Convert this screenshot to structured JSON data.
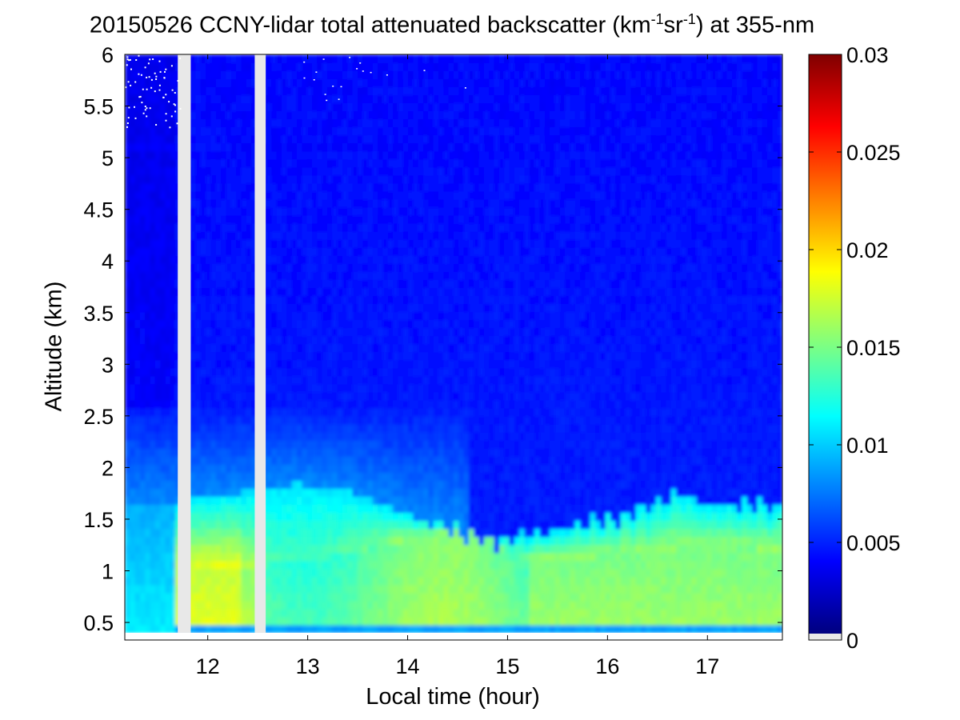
{
  "chart_data": {
    "type": "heatmap",
    "title": {
      "prefix": "20150526 CCNY-lidar total attenuated backscatter (km",
      "exp1": "-1",
      "mid": "sr",
      "exp2": "-1",
      "suffix": ") at 355-nm"
    },
    "xlabel": "Local time (hour)",
    "ylabel": "Altitude (km)",
    "xlim": [
      11.17,
      17.75
    ],
    "ylim": [
      0.33,
      6.0
    ],
    "x_ticks": [
      12,
      13,
      14,
      15,
      16,
      17
    ],
    "x_tick_labels": [
      "12",
      "13",
      "14",
      "15",
      "16",
      "17"
    ],
    "y_ticks": [
      0.5,
      1,
      1.5,
      2,
      2.5,
      3,
      3.5,
      4,
      4.5,
      5,
      5.5,
      6
    ],
    "y_tick_labels": [
      "0.5",
      "1",
      "1.5",
      "2",
      "2.5",
      "3",
      "3.5",
      "4",
      "4.5",
      "5",
      "5.5",
      "6"
    ],
    "colormap": "jet",
    "colorbar": {
      "range": [
        0,
        0.03
      ],
      "ticks": [
        0,
        0.005,
        0.01,
        0.015,
        0.02,
        0.025,
        0.03
      ],
      "tick_labels": [
        "0",
        "0.005",
        "0.01",
        "0.015",
        "0.02",
        "0.025",
        "0.03"
      ],
      "no_data_color": "#e8e8e8"
    },
    "no_data_gaps": [
      [
        11.7,
        11.83
      ],
      [
        12.47,
        12.58
      ]
    ],
    "data_floor_km": 0.4,
    "boundary_layer_top_km": {
      "time": [
        11.17,
        11.6,
        11.9,
        12.5,
        12.9,
        13.5,
        14.0,
        14.3,
        14.75,
        15.0,
        15.5,
        16.0,
        16.5,
        16.7,
        17.0,
        17.5,
        17.75
      ],
      "altitude": [
        1.65,
        1.65,
        1.72,
        1.78,
        1.85,
        1.75,
        1.55,
        1.45,
        1.3,
        1.3,
        1.4,
        1.5,
        1.65,
        1.75,
        1.62,
        1.65,
        1.6
      ]
    },
    "aerosol_layer_core_km": {
      "time": [
        11.17,
        11.7,
        12.0,
        12.5,
        13.0,
        13.5,
        14.0,
        14.5,
        14.75,
        15.0,
        15.5,
        16.0,
        16.5,
        17.0,
        17.75
      ],
      "altitude": [
        1.0,
        1.0,
        1.05,
        1.05,
        1.1,
        1.2,
        1.3,
        1.35,
        1.35,
        1.15,
        1.1,
        1.15,
        1.2,
        1.25,
        1.2
      ]
    },
    "max_backscatter_time_hours": 12.0,
    "max_backscatter_value": 0.018,
    "residual_layer_top_km": 2.6
  },
  "colors": {
    "axis": "#000000",
    "background": "#ffffff"
  }
}
